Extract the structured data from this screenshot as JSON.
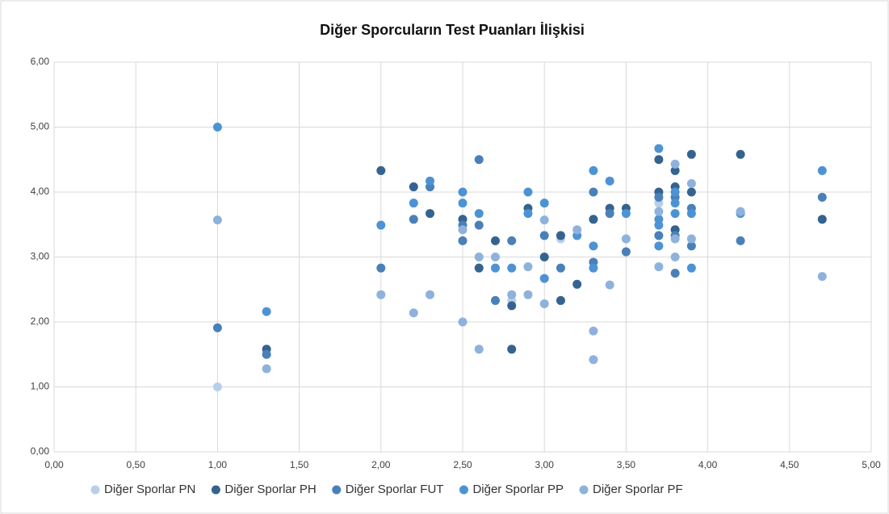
{
  "chart_data": {
    "type": "scatter",
    "title": "Diğer Sporcuların Test Puanları İlişkisi",
    "xlim": [
      0,
      5
    ],
    "ylim": [
      0,
      6
    ],
    "grid": true,
    "legend": "bottom",
    "xticks": [
      {
        "value": 0,
        "label": "0,00"
      },
      {
        "value": 0.5,
        "label": "0,50"
      },
      {
        "value": 1,
        "label": "1,00"
      },
      {
        "value": 1.5,
        "label": "1,50"
      },
      {
        "value": 2,
        "label": "2,00"
      },
      {
        "value": 2.5,
        "label": "2,50"
      },
      {
        "value": 3,
        "label": "3,00"
      },
      {
        "value": 3.5,
        "label": "3,50"
      },
      {
        "value": 4,
        "label": "4,00"
      },
      {
        "value": 4.5,
        "label": "4,50"
      },
      {
        "value": 5,
        "label": "5,00"
      }
    ],
    "yticks": [
      {
        "value": 0,
        "label": "0,00"
      },
      {
        "value": 1,
        "label": "1,00"
      },
      {
        "value": 2,
        "label": "2,00"
      },
      {
        "value": 3,
        "label": "3,00"
      },
      {
        "value": 4,
        "label": "4,00"
      },
      {
        "value": 5,
        "label": "5,00"
      },
      {
        "value": 6,
        "label": "6,00"
      }
    ],
    "series": [
      {
        "name": "Diğer Sporlar PN",
        "color": "#b6cfeb",
        "x": [
          1.0,
          2.8,
          3.1,
          3.7
        ],
        "values": [
          1.0,
          2.33,
          3.28,
          3.83
        ]
      },
      {
        "name": "Diğer Sporlar PH",
        "color": "#35638f",
        "x": [
          1.3,
          2.0,
          2.2,
          2.3,
          2.5,
          2.6,
          2.7,
          2.8,
          2.8,
          2.9,
          3.0,
          3.1,
          3.1,
          3.2,
          3.3,
          3.4,
          3.5,
          3.7,
          3.7,
          3.8,
          3.8,
          3.8,
          3.9,
          3.9,
          4.2,
          4.7
        ],
        "values": [
          1.58,
          4.33,
          4.08,
          3.67,
          3.58,
          2.83,
          3.25,
          2.25,
          1.58,
          3.75,
          3.0,
          3.33,
          2.33,
          2.58,
          3.58,
          3.75,
          3.75,
          4.5,
          4.0,
          4.33,
          4.08,
          3.42,
          4.58,
          4.0,
          4.58,
          3.58
        ]
      },
      {
        "name": "Diğer Sporlar FUT",
        "color": "#4a80b8",
        "x": [
          1.0,
          1.3,
          2.0,
          2.2,
          2.3,
          2.5,
          2.5,
          2.6,
          2.6,
          2.7,
          2.8,
          3.0,
          3.1,
          3.3,
          3.3,
          3.4,
          3.5,
          3.7,
          3.7,
          3.8,
          3.8,
          3.8,
          3.9,
          3.9,
          4.2,
          4.7
        ],
        "values": [
          1.91,
          1.5,
          2.83,
          3.58,
          4.08,
          3.49,
          3.25,
          4.5,
          3.49,
          2.33,
          3.25,
          3.33,
          2.83,
          4.0,
          2.92,
          3.67,
          3.08,
          3.92,
          3.33,
          3.92,
          3.33,
          2.75,
          3.75,
          3.17,
          3.25,
          3.92
        ]
      },
      {
        "name": "Diğer Sporlar PP",
        "color": "#4d93d4",
        "x": [
          1.0,
          1.3,
          2.0,
          2.2,
          2.3,
          2.5,
          2.5,
          2.6,
          2.7,
          2.8,
          2.9,
          2.9,
          3.0,
          3.0,
          3.2,
          3.3,
          3.3,
          3.3,
          3.4,
          3.5,
          3.7,
          3.7,
          3.7,
          3.7,
          3.8,
          3.8,
          3.8,
          3.9,
          3.9,
          4.2,
          4.7
        ],
        "values": [
          5.0,
          2.16,
          3.49,
          3.83,
          4.17,
          4.0,
          3.83,
          3.67,
          2.83,
          2.83,
          4.0,
          3.67,
          3.83,
          2.67,
          3.33,
          4.33,
          3.17,
          2.83,
          4.17,
          3.67,
          4.67,
          3.58,
          3.49,
          3.17,
          4.0,
          3.83,
          3.67,
          3.67,
          2.83,
          3.67,
          4.33
        ]
      },
      {
        "name": "Diğer Sporlar PF",
        "color": "#8eb2dc",
        "x": [
          1.0,
          1.3,
          2.0,
          2.2,
          2.3,
          2.5,
          2.5,
          2.6,
          2.6,
          2.7,
          2.8,
          2.9,
          2.9,
          3.0,
          3.0,
          3.2,
          3.3,
          3.3,
          3.4,
          3.5,
          3.7,
          3.7,
          3.8,
          3.8,
          3.8,
          3.9,
          3.9,
          4.2,
          4.7
        ],
        "values": [
          3.57,
          1.28,
          2.42,
          2.14,
          2.42,
          3.42,
          2.0,
          3.0,
          1.58,
          3.0,
          2.42,
          2.85,
          2.42,
          3.57,
          2.28,
          3.42,
          1.86,
          1.42,
          2.57,
          3.28,
          3.7,
          2.85,
          4.43,
          3.28,
          3.0,
          4.13,
          3.28,
          3.7,
          2.7
        ]
      }
    ]
  }
}
